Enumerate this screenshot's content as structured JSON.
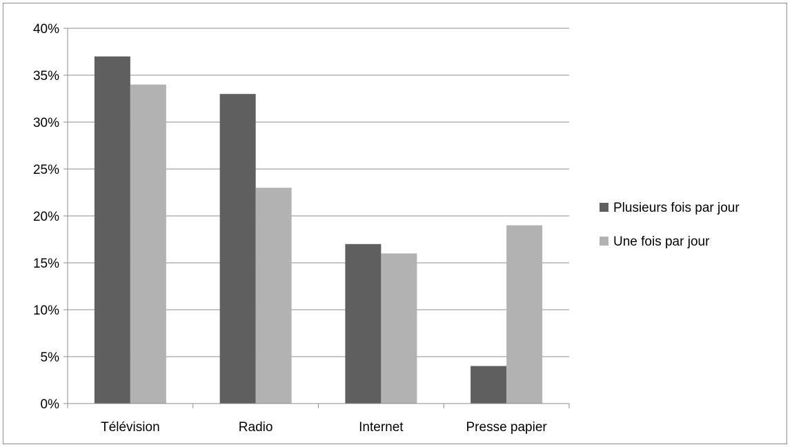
{
  "chart_data": {
    "type": "bar",
    "title": "",
    "xlabel": "",
    "ylabel": "",
    "categories": [
      "Télévision",
      "Radio",
      "Internet",
      "Presse papier"
    ],
    "series": [
      {
        "name": "Plusieurs fois par jour",
        "color": "#5f5f5f",
        "values": [
          37,
          33,
          17,
          4
        ]
      },
      {
        "name": "Une fois par jour",
        "color": "#b2b2b2",
        "values": [
          34,
          23,
          16,
          19
        ]
      }
    ],
    "ylim": [
      0,
      40
    ],
    "yticks": [
      "0%",
      "5%",
      "10%",
      "15%",
      "20%",
      "25%",
      "30%",
      "35%",
      "40%"
    ],
    "grid": true,
    "legend_position": "right"
  }
}
